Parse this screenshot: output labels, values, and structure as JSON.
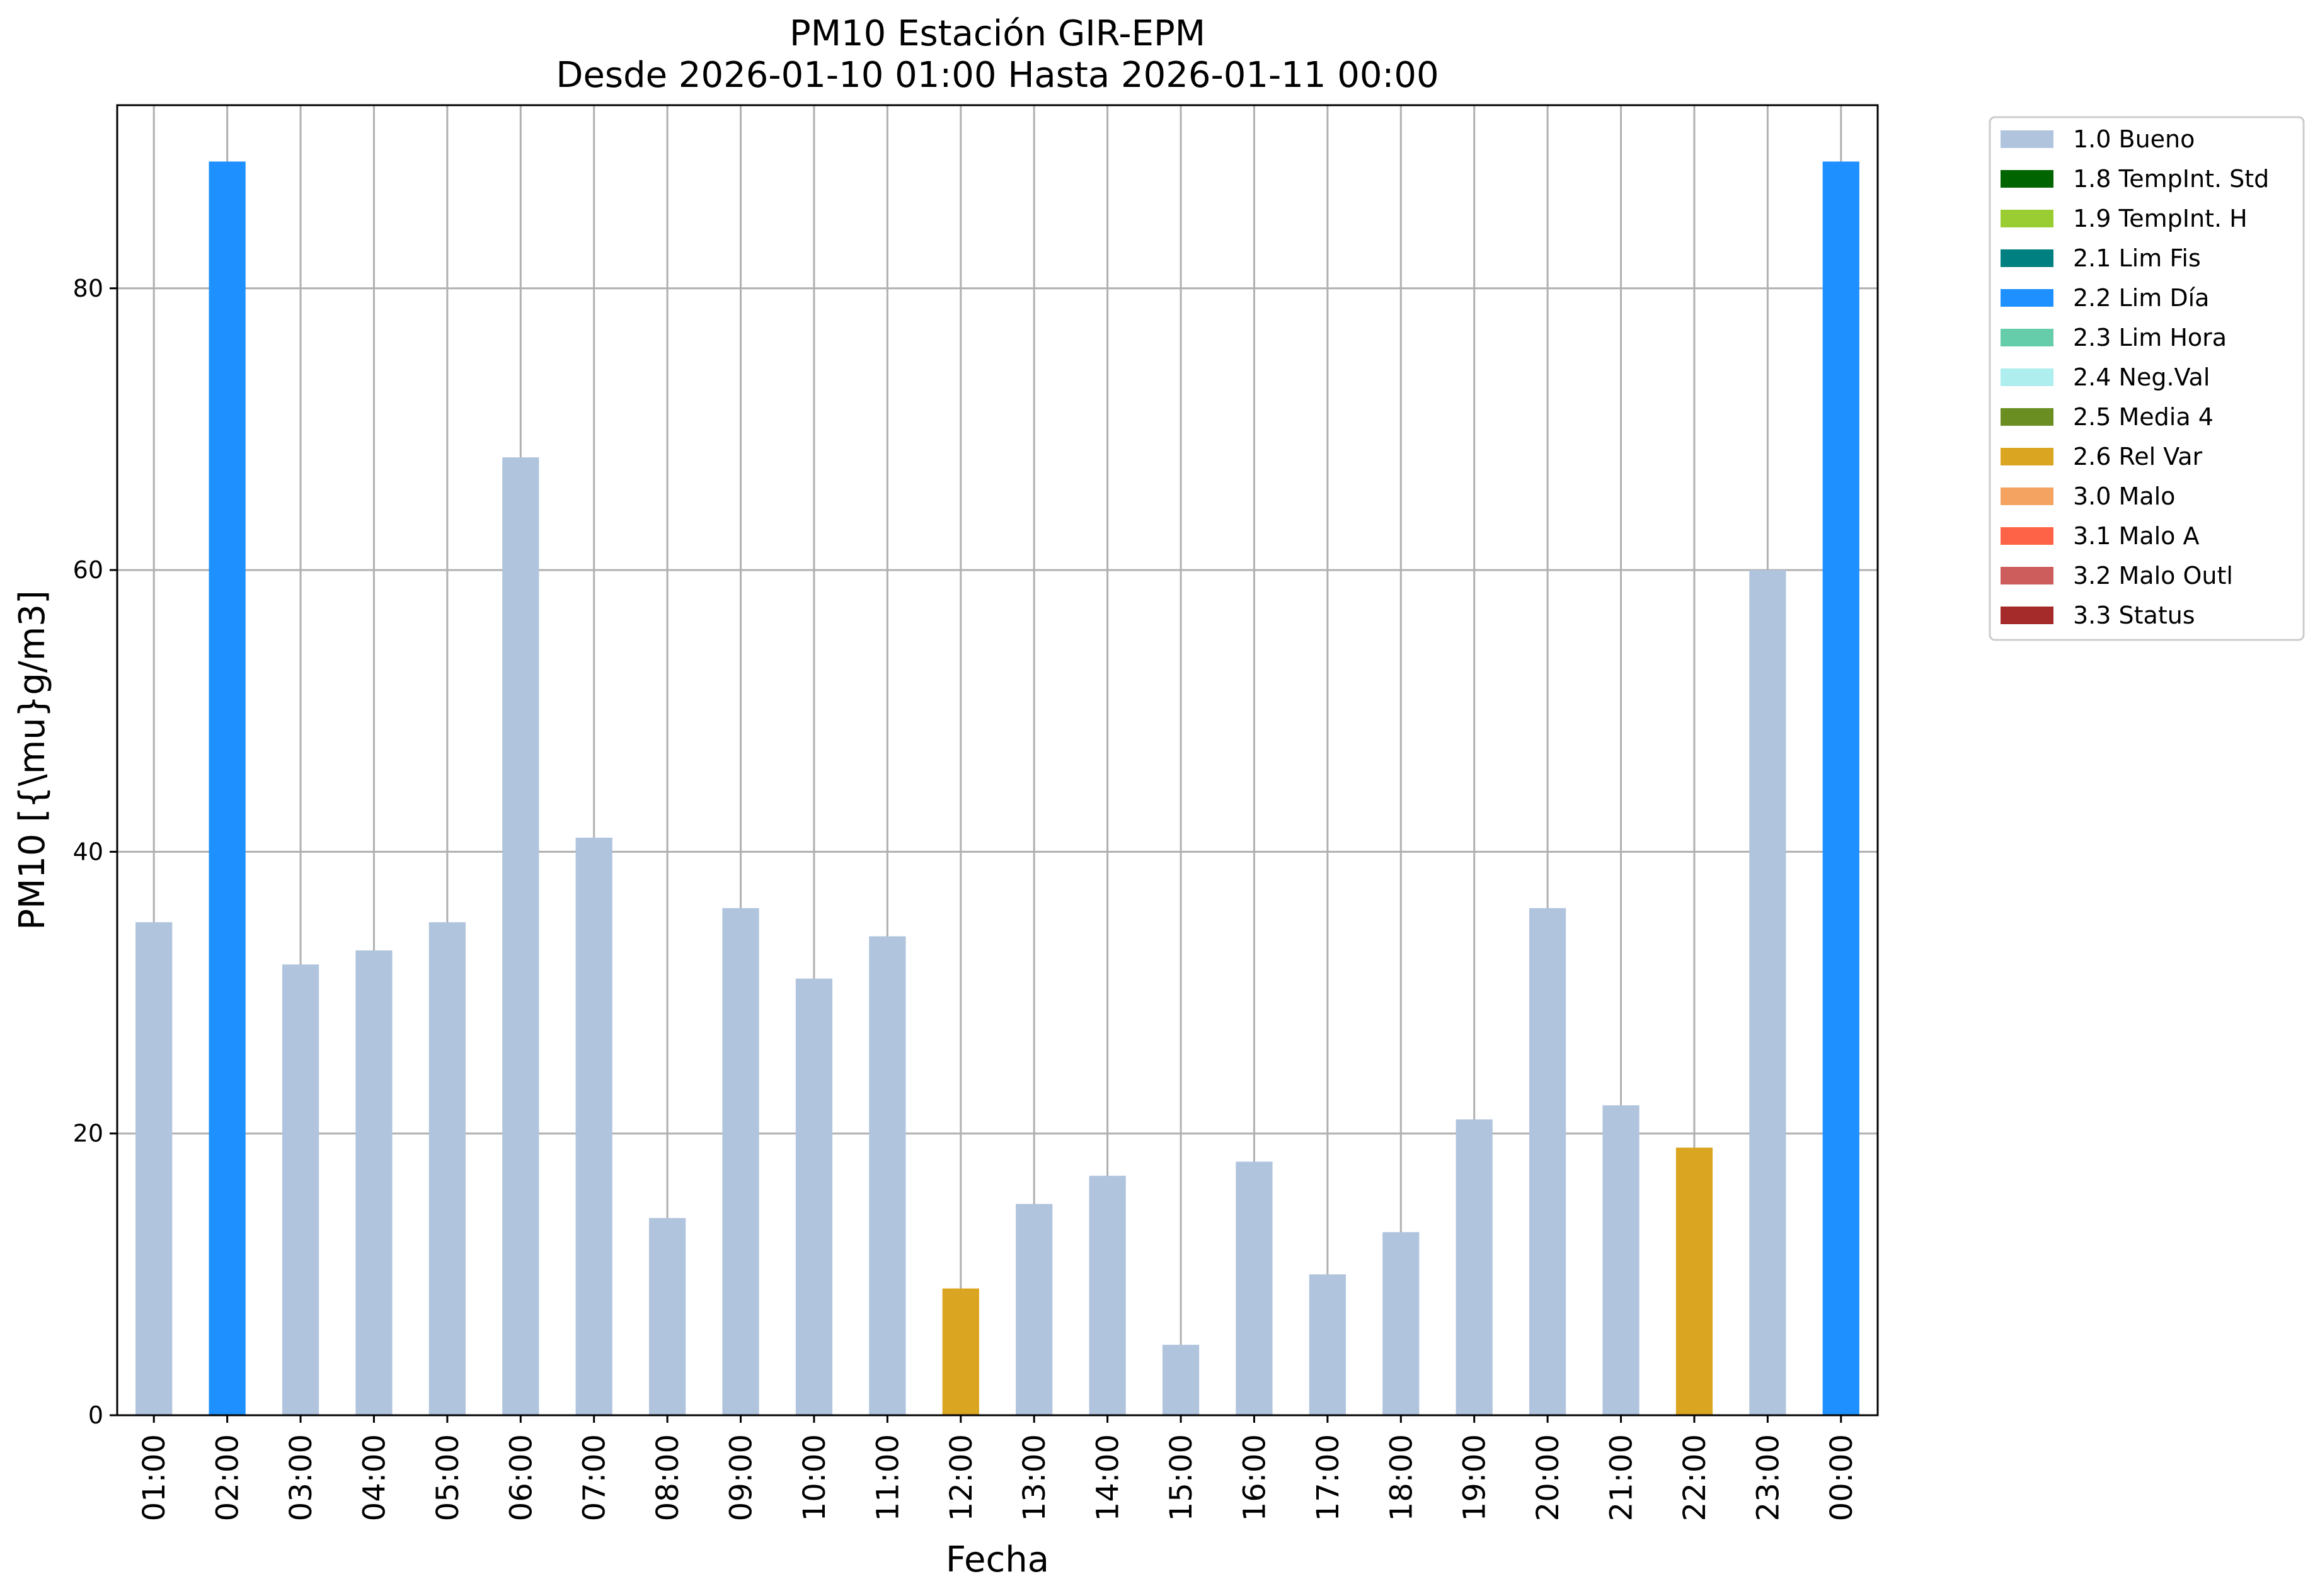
{
  "chart_data": {
    "type": "bar",
    "title": "PM10 Estación GIR-EPM",
    "subtitle": "Desde 2026-01-10 01:00 Hasta 2026-01-11 00:00",
    "xlabel": "Fecha",
    "ylabel": "PM10 [{\\mu}g/m3]",
    "ylim": [
      0,
      93
    ],
    "yticks": [
      0,
      20,
      40,
      60,
      80
    ],
    "grid": true,
    "legend_placement": "outside-top-right",
    "categories": [
      "01:00",
      "02:00",
      "03:00",
      "04:00",
      "05:00",
      "06:00",
      "07:00",
      "08:00",
      "09:00",
      "10:00",
      "11:00",
      "12:00",
      "13:00",
      "14:00",
      "15:00",
      "16:00",
      "17:00",
      "18:00",
      "19:00",
      "20:00",
      "21:00",
      "22:00",
      "23:00",
      "00:00"
    ],
    "values": [
      35,
      89,
      32,
      33,
      35,
      68,
      41,
      14,
      36,
      31,
      34,
      9,
      15,
      17,
      5,
      18,
      10,
      13,
      21,
      36,
      22,
      19,
      60,
      89
    ],
    "flags": [
      "1.0 Bueno",
      "2.2 Lim Día",
      "1.0 Bueno",
      "1.0 Bueno",
      "1.0 Bueno",
      "1.0 Bueno",
      "1.0 Bueno",
      "1.0 Bueno",
      "1.0 Bueno",
      "1.0 Bueno",
      "1.0 Bueno",
      "2.6 Rel Var",
      "1.0 Bueno",
      "1.0 Bueno",
      "1.0 Bueno",
      "1.0 Bueno",
      "1.0 Bueno",
      "1.0 Bueno",
      "1.0 Bueno",
      "1.0 Bueno",
      "1.0 Bueno",
      "2.6 Rel Var",
      "1.0 Bueno",
      "2.2 Lim Día"
    ],
    "legend": [
      {
        "name": "1.0 Bueno",
        "color": "#b0c4de"
      },
      {
        "name": "1.8 TempInt. Std",
        "color": "#006400"
      },
      {
        "name": "1.9 TempInt. H",
        "color": "#9acd32"
      },
      {
        "name": "2.1 Lim Fis",
        "color": "#008080"
      },
      {
        "name": "2.2 Lim Día",
        "color": "#1e90ff"
      },
      {
        "name": "2.3 Lim Hora",
        "color": "#66cdaa"
      },
      {
        "name": "2.4 Neg.Val",
        "color": "#afeeee"
      },
      {
        "name": "2.5 Media 4",
        "color": "#6b8e23"
      },
      {
        "name": "2.6 Rel Var",
        "color": "#daa520"
      },
      {
        "name": "3.0 Malo",
        "color": "#f4a460"
      },
      {
        "name": "3.1 Malo A",
        "color": "#ff6347"
      },
      {
        "name": "3.2 Malo Outl",
        "color": "#cd5c5c"
      },
      {
        "name": "3.3 Status",
        "color": "#a52a2a"
      }
    ]
  }
}
